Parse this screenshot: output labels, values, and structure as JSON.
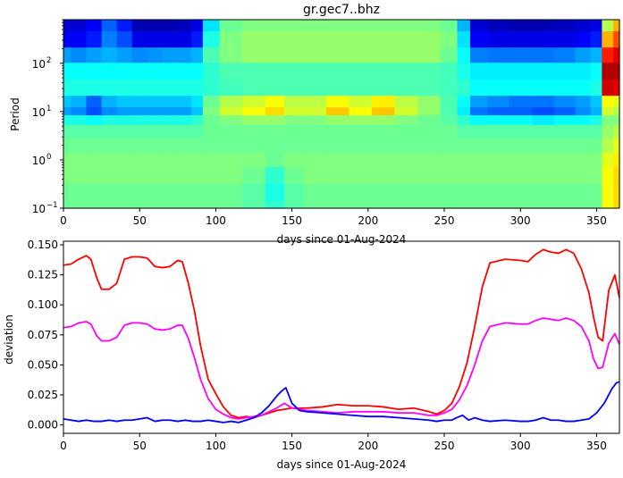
{
  "chart_data": [
    {
      "type": "heatmap",
      "title": "gr.gec7..bhz",
      "xlabel": "days since 01-Aug-2024",
      "ylabel": "Period",
      "xlim": [
        0,
        365
      ],
      "ylim": [
        0.1,
        800
      ],
      "yscale": "log",
      "xticks": [
        0,
        50,
        100,
        150,
        200,
        250,
        300,
        350
      ],
      "xtick_labels": [
        "0",
        "50",
        "100",
        "150",
        "200",
        "250",
        "300",
        "350"
      ],
      "yticks": [
        0.1,
        1,
        10,
        100
      ],
      "ytick_labels": [
        "10",
        "10",
        "10",
        "10"
      ],
      "ytick_exponents": [
        "−1",
        "0",
        "1",
        "2"
      ],
      "colormap": "jet",
      "vmin": 0,
      "vmax": 1,
      "columns_x": [
        0,
        10,
        20,
        30,
        40,
        50,
        60,
        70,
        80,
        88,
        95,
        110,
        125,
        140,
        150,
        165,
        180,
        195,
        210,
        225,
        240,
        255,
        262,
        272,
        285,
        300,
        315,
        330,
        342,
        350,
        357,
        365
      ],
      "rows_period": [
        700,
        300,
        150,
        70,
        30,
        15,
        10,
        7,
        4,
        2,
        1,
        0.5,
        0.2,
        0.1
      ],
      "values": [
        [
          0.08,
          0.08,
          0.12,
          0.22,
          0.15,
          0.05,
          0.05,
          0.05,
          0.06,
          0.1,
          0.35,
          0.48,
          0.5,
          0.5,
          0.5,
          0.5,
          0.5,
          0.5,
          0.5,
          0.5,
          0.5,
          0.48,
          0.3,
          0.08,
          0.06,
          0.05,
          0.05,
          0.06,
          0.08,
          0.1,
          0.55,
          0.7
        ],
        [
          0.12,
          0.12,
          0.15,
          0.25,
          0.2,
          0.1,
          0.1,
          0.1,
          0.1,
          0.15,
          0.4,
          0.5,
          0.52,
          0.52,
          0.52,
          0.52,
          0.52,
          0.52,
          0.52,
          0.52,
          0.52,
          0.5,
          0.35,
          0.12,
          0.1,
          0.1,
          0.1,
          0.1,
          0.12,
          0.15,
          0.7,
          0.8
        ],
        [
          0.28,
          0.26,
          0.28,
          0.3,
          0.28,
          0.26,
          0.27,
          0.28,
          0.28,
          0.3,
          0.45,
          0.5,
          0.52,
          0.52,
          0.52,
          0.52,
          0.52,
          0.52,
          0.52,
          0.52,
          0.52,
          0.48,
          0.38,
          0.25,
          0.24,
          0.24,
          0.24,
          0.25,
          0.28,
          0.3,
          0.85,
          0.9
        ],
        [
          0.38,
          0.38,
          0.38,
          0.38,
          0.38,
          0.38,
          0.38,
          0.38,
          0.38,
          0.38,
          0.42,
          0.45,
          0.45,
          0.45,
          0.45,
          0.45,
          0.45,
          0.45,
          0.45,
          0.45,
          0.45,
          0.44,
          0.4,
          0.36,
          0.36,
          0.36,
          0.36,
          0.36,
          0.36,
          0.38,
          0.95,
          0.95
        ],
        [
          0.4,
          0.4,
          0.4,
          0.4,
          0.4,
          0.4,
          0.4,
          0.4,
          0.4,
          0.4,
          0.42,
          0.44,
          0.45,
          0.45,
          0.45,
          0.45,
          0.45,
          0.45,
          0.45,
          0.45,
          0.45,
          0.44,
          0.42,
          0.38,
          0.38,
          0.38,
          0.38,
          0.38,
          0.38,
          0.4,
          0.92,
          0.9
        ],
        [
          0.32,
          0.3,
          0.22,
          0.3,
          0.32,
          0.32,
          0.32,
          0.32,
          0.32,
          0.35,
          0.48,
          0.55,
          0.58,
          0.62,
          0.56,
          0.56,
          0.62,
          0.58,
          0.64,
          0.56,
          0.52,
          0.45,
          0.38,
          0.28,
          0.26,
          0.24,
          0.24,
          0.26,
          0.28,
          0.32,
          0.62,
          0.6
        ],
        [
          0.28,
          0.26,
          0.2,
          0.26,
          0.28,
          0.28,
          0.28,
          0.28,
          0.28,
          0.32,
          0.5,
          0.58,
          0.62,
          0.66,
          0.58,
          0.58,
          0.68,
          0.62,
          0.68,
          0.58,
          0.52,
          0.45,
          0.36,
          0.24,
          0.22,
          0.22,
          0.2,
          0.22,
          0.26,
          0.3,
          0.58,
          0.55
        ],
        [
          0.4,
          0.4,
          0.38,
          0.4,
          0.4,
          0.4,
          0.4,
          0.4,
          0.4,
          0.42,
          0.48,
          0.5,
          0.52,
          0.52,
          0.5,
          0.5,
          0.52,
          0.52,
          0.52,
          0.5,
          0.48,
          0.46,
          0.42,
          0.38,
          0.38,
          0.38,
          0.36,
          0.38,
          0.38,
          0.4,
          0.5,
          0.5
        ],
        [
          0.46,
          0.46,
          0.46,
          0.46,
          0.46,
          0.46,
          0.46,
          0.46,
          0.46,
          0.46,
          0.48,
          0.48,
          0.48,
          0.48,
          0.48,
          0.48,
          0.48,
          0.48,
          0.48,
          0.48,
          0.48,
          0.48,
          0.46,
          0.46,
          0.46,
          0.46,
          0.46,
          0.46,
          0.46,
          0.46,
          0.52,
          0.55
        ],
        [
          0.48,
          0.48,
          0.48,
          0.48,
          0.48,
          0.48,
          0.48,
          0.48,
          0.48,
          0.48,
          0.48,
          0.48,
          0.48,
          0.48,
          0.48,
          0.48,
          0.48,
          0.48,
          0.48,
          0.48,
          0.48,
          0.48,
          0.48,
          0.48,
          0.48,
          0.48,
          0.48,
          0.48,
          0.48,
          0.48,
          0.55,
          0.6
        ],
        [
          0.5,
          0.5,
          0.5,
          0.5,
          0.5,
          0.5,
          0.5,
          0.5,
          0.5,
          0.5,
          0.5,
          0.5,
          0.5,
          0.48,
          0.5,
          0.5,
          0.5,
          0.5,
          0.5,
          0.5,
          0.5,
          0.5,
          0.5,
          0.5,
          0.5,
          0.5,
          0.5,
          0.5,
          0.5,
          0.5,
          0.6,
          0.64
        ],
        [
          0.5,
          0.5,
          0.5,
          0.5,
          0.5,
          0.5,
          0.5,
          0.5,
          0.5,
          0.5,
          0.5,
          0.5,
          0.48,
          0.42,
          0.48,
          0.5,
          0.5,
          0.5,
          0.5,
          0.5,
          0.5,
          0.5,
          0.5,
          0.5,
          0.5,
          0.5,
          0.5,
          0.5,
          0.5,
          0.5,
          0.62,
          0.66
        ],
        [
          0.48,
          0.48,
          0.48,
          0.48,
          0.48,
          0.48,
          0.48,
          0.48,
          0.48,
          0.48,
          0.48,
          0.48,
          0.46,
          0.4,
          0.46,
          0.48,
          0.48,
          0.48,
          0.48,
          0.48,
          0.48,
          0.48,
          0.48,
          0.48,
          0.48,
          0.48,
          0.48,
          0.48,
          0.48,
          0.48,
          0.62,
          0.66
        ],
        [
          0.48,
          0.48,
          0.48,
          0.48,
          0.48,
          0.48,
          0.48,
          0.48,
          0.48,
          0.48,
          0.48,
          0.48,
          0.46,
          0.42,
          0.46,
          0.48,
          0.48,
          0.48,
          0.48,
          0.48,
          0.48,
          0.48,
          0.48,
          0.48,
          0.48,
          0.48,
          0.48,
          0.48,
          0.48,
          0.48,
          0.62,
          0.66
        ]
      ]
    },
    {
      "type": "line",
      "xlabel": "days since 01-Aug-2024",
      "ylabel": "deviation",
      "xlim": [
        0,
        365
      ],
      "ylim": [
        -0.007,
        0.153
      ],
      "xticks": [
        0,
        50,
        100,
        150,
        200,
        250,
        300,
        350
      ],
      "xtick_labels": [
        "0",
        "50",
        "100",
        "150",
        "200",
        "250",
        "300",
        "350"
      ],
      "yticks": [
        0.0,
        0.025,
        0.05,
        0.075,
        0.1,
        0.125,
        0.15
      ],
      "ytick_labels": [
        "0.000",
        "0.025",
        "0.050",
        "0.075",
        "0.100",
        "0.125",
        "0.150"
      ],
      "series": [
        {
          "color": "#ff0000",
          "x": [
            0,
            5,
            10,
            15,
            18,
            22,
            25,
            30,
            35,
            40,
            45,
            50,
            55,
            60,
            65,
            70,
            75,
            78,
            82,
            86,
            90,
            95,
            100,
            105,
            110,
            115,
            120,
            125,
            130,
            140,
            150,
            160,
            170,
            180,
            190,
            200,
            210,
            220,
            230,
            240,
            245,
            250,
            255,
            260,
            265,
            270,
            275,
            280,
            290,
            300,
            305,
            310,
            315,
            320,
            325,
            330,
            335,
            340,
            345,
            348,
            351,
            354,
            358,
            362,
            365
          ],
          "y": [
            0.133,
            0.134,
            0.138,
            0.141,
            0.138,
            0.122,
            0.113,
            0.113,
            0.118,
            0.138,
            0.14,
            0.14,
            0.139,
            0.132,
            0.131,
            0.132,
            0.137,
            0.136,
            0.118,
            0.095,
            0.066,
            0.038,
            0.026,
            0.015,
            0.008,
            0.006,
            0.007,
            0.006,
            0.008,
            0.012,
            0.014,
            0.014,
            0.015,
            0.017,
            0.016,
            0.016,
            0.015,
            0.013,
            0.014,
            0.011,
            0.009,
            0.012,
            0.018,
            0.032,
            0.052,
            0.082,
            0.115,
            0.135,
            0.138,
            0.137,
            0.136,
            0.142,
            0.146,
            0.144,
            0.143,
            0.146,
            0.143,
            0.13,
            0.11,
            0.09,
            0.073,
            0.07,
            0.112,
            0.125,
            0.106
          ]
        },
        {
          "color": "#ff00ff",
          "x": [
            0,
            5,
            10,
            15,
            18,
            22,
            25,
            30,
            35,
            40,
            45,
            50,
            55,
            60,
            65,
            70,
            75,
            78,
            82,
            86,
            90,
            95,
            100,
            105,
            110,
            115,
            120,
            125,
            130,
            140,
            145,
            150,
            160,
            170,
            180,
            190,
            200,
            210,
            220,
            230,
            240,
            245,
            250,
            255,
            260,
            265,
            270,
            275,
            280,
            290,
            300,
            305,
            310,
            315,
            320,
            325,
            330,
            335,
            340,
            345,
            348,
            351,
            354,
            358,
            362,
            365
          ],
          "y": [
            0.081,
            0.082,
            0.085,
            0.086,
            0.084,
            0.074,
            0.07,
            0.07,
            0.073,
            0.083,
            0.085,
            0.085,
            0.084,
            0.08,
            0.079,
            0.08,
            0.083,
            0.083,
            0.072,
            0.056,
            0.038,
            0.022,
            0.013,
            0.009,
            0.006,
            0.005,
            0.006,
            0.007,
            0.008,
            0.014,
            0.018,
            0.014,
            0.012,
            0.011,
            0.01,
            0.011,
            0.011,
            0.011,
            0.01,
            0.01,
            0.008,
            0.008,
            0.01,
            0.013,
            0.021,
            0.033,
            0.05,
            0.07,
            0.082,
            0.085,
            0.084,
            0.084,
            0.087,
            0.089,
            0.088,
            0.087,
            0.089,
            0.087,
            0.082,
            0.07,
            0.055,
            0.047,
            0.048,
            0.068,
            0.076,
            0.067
          ]
        },
        {
          "color": "#0000ff",
          "x": [
            0,
            5,
            10,
            15,
            20,
            25,
            30,
            35,
            40,
            45,
            50,
            55,
            60,
            65,
            70,
            75,
            80,
            85,
            90,
            95,
            100,
            105,
            110,
            115,
            120,
            125,
            130,
            135,
            140,
            143,
            146,
            150,
            155,
            160,
            170,
            180,
            190,
            200,
            210,
            220,
            230,
            240,
            245,
            250,
            255,
            258,
            262,
            266,
            270,
            275,
            280,
            290,
            300,
            305,
            310,
            315,
            320,
            325,
            330,
            335,
            340,
            345,
            350,
            355,
            360,
            363,
            365
          ],
          "y": [
            0.005,
            0.004,
            0.003,
            0.004,
            0.003,
            0.003,
            0.004,
            0.003,
            0.004,
            0.004,
            0.005,
            0.006,
            0.003,
            0.004,
            0.004,
            0.003,
            0.004,
            0.003,
            0.003,
            0.004,
            0.003,
            0.002,
            0.003,
            0.002,
            0.004,
            0.006,
            0.01,
            0.016,
            0.024,
            0.028,
            0.031,
            0.018,
            0.012,
            0.011,
            0.01,
            0.009,
            0.008,
            0.007,
            0.007,
            0.006,
            0.005,
            0.004,
            0.003,
            0.004,
            0.004,
            0.006,
            0.008,
            0.004,
            0.006,
            0.004,
            0.003,
            0.004,
            0.003,
            0.003,
            0.004,
            0.006,
            0.004,
            0.004,
            0.003,
            0.003,
            0.004,
            0.005,
            0.01,
            0.018,
            0.03,
            0.035,
            0.036
          ]
        }
      ]
    }
  ]
}
